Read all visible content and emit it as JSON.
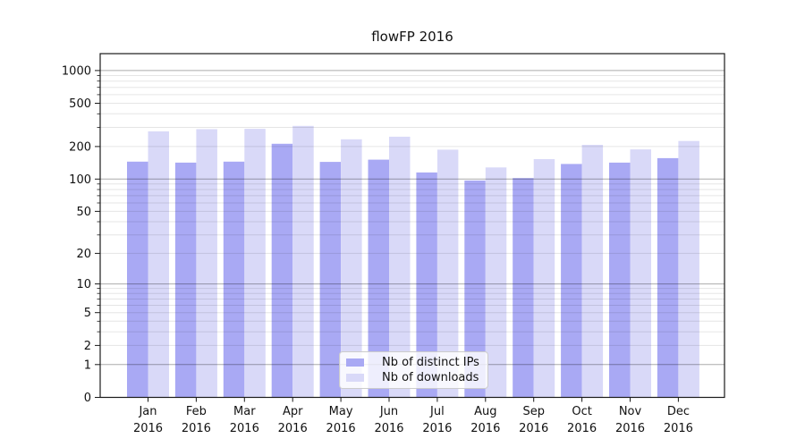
{
  "figure": {
    "title": "flowFP 2016"
  },
  "chart_data": {
    "type": "bar",
    "title": "flowFP 2016",
    "categories": [
      "Jan 2016",
      "Feb 2016",
      "Mar 2016",
      "Apr 2016",
      "May 2016",
      "Jun 2016",
      "Jul 2016",
      "Aug 2016",
      "Sep 2016",
      "Oct 2016",
      "Nov 2016",
      "Dec 2016"
    ],
    "series": [
      {
        "name": "Nb of distinct IPs",
        "color": "#a9a9f4",
        "values": [
          145,
          142,
          145,
          212,
          144,
          151,
          115,
          97,
          102,
          138,
          142,
          156
        ]
      },
      {
        "name": "Nb of downloads",
        "color": "#d9d9f8",
        "values": [
          276,
          289,
          291,
          310,
          233,
          246,
          187,
          128,
          153,
          207,
          188,
          225
        ]
      }
    ],
    "xlabel": "",
    "ylabel": "",
    "y_ticks": [
      0,
      1,
      2,
      5,
      10,
      20,
      50,
      100,
      200,
      500,
      1000
    ],
    "y_scale": "log1p",
    "ylim": [
      0,
      1430
    ],
    "grid": true,
    "grid_major_values": [
      1,
      10,
      100,
      1000
    ],
    "legend_position": "lower center"
  }
}
